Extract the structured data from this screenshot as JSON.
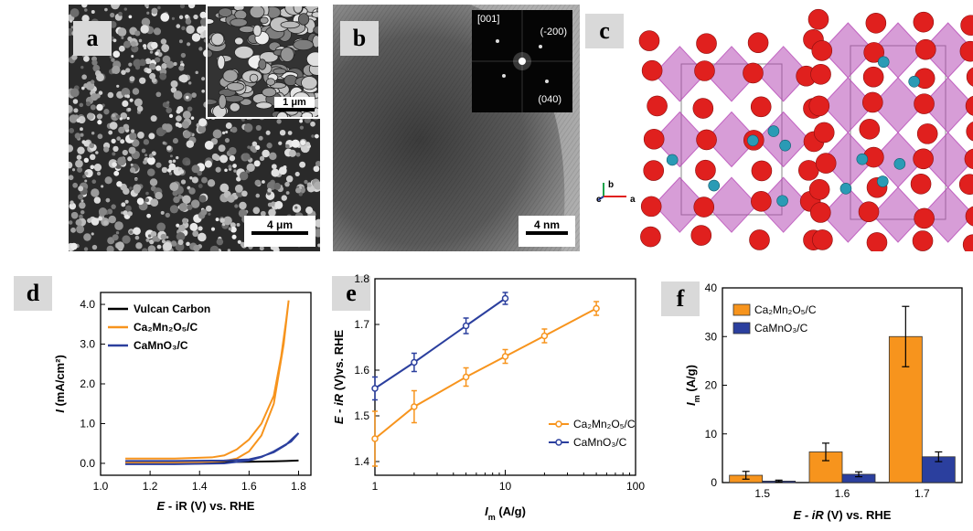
{
  "panels": {
    "a": {
      "label": "a",
      "scale_main": "4 μm",
      "scale_inset": "1 μm"
    },
    "b": {
      "label": "b",
      "scale_main": "4 nm",
      "fft_zone": "[001]",
      "fft_spot1": "(-200)",
      "fft_spot2": "(040)"
    },
    "c": {
      "label": "c",
      "axis_b": "b",
      "axis_a": "a",
      "axis_c": "c",
      "colors": {
        "oxygen": "#e0201e",
        "calcium": "#2a9bb5",
        "octahedra": "#b03bb0"
      }
    },
    "d": {
      "label": "d"
    },
    "e": {
      "label": "e"
    },
    "f": {
      "label": "f"
    }
  },
  "chart_data": [
    {
      "id": "d",
      "type": "line",
      "xlabel_italic": "E",
      "xlabel_rest": " - iR (V) vs. RHE",
      "ylabel_italic": "I",
      "ylabel_rest": " (mA/cm²)",
      "xlim": [
        1.0,
        1.85
      ],
      "ylim": [
        -0.3,
        4.3
      ],
      "xticks": [
        "1.0",
        "1.2",
        "1.4",
        "1.6",
        "1.8"
      ],
      "yticks": [
        "0.0",
        "1.0",
        "2.0",
        "3.0",
        "4.0"
      ],
      "legend": [
        "Vulcan Carbon",
        "Ca₂Mn₂O₅/C",
        "CaMnO₃/C"
      ],
      "legend_placement": "top-left",
      "series": [
        {
          "name": "Vulcan Carbon",
          "color": "#000000",
          "x": [
            1.1,
            1.3,
            1.5,
            1.6,
            1.7,
            1.75,
            1.8
          ],
          "y": [
            0.02,
            0.03,
            0.03,
            0.04,
            0.05,
            0.06,
            0.07
          ]
        },
        {
          "name": "Ca₂Mn₂O₅/C",
          "color": "#f7941d",
          "x": [
            1.1,
            1.3,
            1.45,
            1.5,
            1.55,
            1.6,
            1.65,
            1.7,
            1.73,
            1.75,
            1.76,
            1.74,
            1.7,
            1.65,
            1.6,
            1.55,
            1.5,
            1.4,
            1.3,
            1.1
          ],
          "y": [
            0.12,
            0.12,
            0.15,
            0.2,
            0.35,
            0.6,
            1.0,
            1.7,
            2.7,
            3.6,
            4.1,
            3.0,
            1.5,
            0.7,
            0.3,
            0.12,
            0.06,
            0.03,
            0.02,
            0.02
          ]
        },
        {
          "name": "CaMnO₃/C",
          "color": "#2b3f9e",
          "x": [
            1.1,
            1.3,
            1.5,
            1.6,
            1.65,
            1.7,
            1.75,
            1.78,
            1.8,
            1.77,
            1.7,
            1.65,
            1.6,
            1.5,
            1.3,
            1.1
          ],
          "y": [
            0.06,
            0.06,
            0.07,
            0.1,
            0.17,
            0.28,
            0.47,
            0.65,
            0.76,
            0.55,
            0.3,
            0.16,
            0.07,
            0.0,
            -0.02,
            -0.02
          ]
        }
      ]
    },
    {
      "id": "e",
      "type": "line",
      "xlabel_italic": "I",
      "xlabel_sub": "m",
      "xlabel_rest": " (A/g)",
      "ylabel_italic": "E - iR",
      "ylabel_rest": " (V)vs. RHE",
      "xscale": "log",
      "xlim": [
        1,
        100
      ],
      "ylim": [
        1.37,
        1.8
      ],
      "xticks": [
        "1",
        "10",
        "100"
      ],
      "yticks": [
        "1.4",
        "1.5",
        "1.6",
        "1.7",
        "1.8"
      ],
      "legend": [
        "Ca₂Mn₂O₅/C",
        "CaMnO₃/C"
      ],
      "legend_placement": "bottom-right",
      "series": [
        {
          "name": "Ca₂Mn₂O₅/C",
          "color": "#f7941d",
          "x": [
            1,
            2,
            5,
            10,
            20,
            50
          ],
          "y": [
            1.45,
            1.52,
            1.585,
            1.63,
            1.675,
            1.735
          ],
          "err": [
            0.06,
            0.035,
            0.02,
            0.015,
            0.015,
            0.015
          ]
        },
        {
          "name": "CaMnO₃/C",
          "color": "#2b3f9e",
          "x": [
            1,
            2,
            5,
            10
          ],
          "y": [
            1.56,
            1.617,
            1.697,
            1.757
          ],
          "err": [
            0.025,
            0.02,
            0.017,
            0.013
          ]
        }
      ]
    },
    {
      "id": "f",
      "type": "bar",
      "xlabel_italic": "E - iR",
      "xlabel_rest": " (V) vs. RHE",
      "ylabel_italic": "I",
      "ylabel_sub": "m",
      "ylabel_rest": " (A/g)",
      "categories": [
        "1.5",
        "1.6",
        "1.7"
      ],
      "ylim": [
        0,
        40
      ],
      "yticks": [
        "0",
        "10",
        "20",
        "30",
        "40"
      ],
      "legend": [
        "Ca₂Mn₂O₅/C",
        "CaMnO₃/C"
      ],
      "legend_placement": "top-left",
      "series": [
        {
          "name": "Ca₂Mn₂O₅/C",
          "color": "#f7941d",
          "values": [
            1.5,
            6.3,
            30.0
          ],
          "err": [
            0.8,
            1.8,
            6.2
          ]
        },
        {
          "name": "CaMnO₃/C",
          "color": "#2b3f9e",
          "values": [
            0.3,
            1.7,
            5.3
          ],
          "err": [
            0.2,
            0.5,
            1.0
          ]
        }
      ]
    }
  ]
}
